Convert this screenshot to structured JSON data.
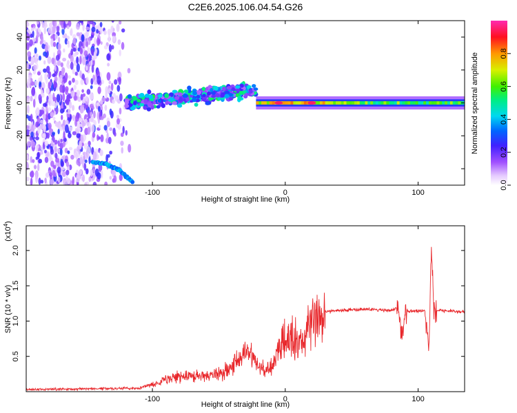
{
  "title": "C2E6.2025.106.04.54.G26",
  "chart_data": [
    {
      "type": "heatmap",
      "title": "C2E6.2025.106.04.54.G26",
      "xlabel": "Height of straight line (km)",
      "ylabel": "Frequency (Hz)",
      "xlim": [
        -195,
        135
      ],
      "ylim": [
        -50,
        50
      ],
      "xticks": [
        -100,
        0,
        100
      ],
      "xtick_labels": [
        "-100",
        "0",
        "100"
      ],
      "yticks": [
        -40,
        -20,
        0,
        20,
        40
      ],
      "ytick_labels": [
        "-40",
        "-20",
        "0",
        "20",
        "40"
      ],
      "grid": false,
      "colorbar": {
        "label": "Normalized spectral amplitude",
        "range": [
          0.0,
          1.0
        ],
        "ticks": [
          0.0,
          0.2,
          0.4,
          0.6,
          0.8
        ],
        "tick_labels": [
          "0.0",
          "0.2",
          "0.4",
          "0.6",
          "0.8"
        ],
        "colormap": "rainbow (white-violet-blue-cyan-green-yellow-red-magenta)"
      },
      "features": [
        {
          "name": "scattered noise",
          "x_range": [
            -195,
            -115
          ],
          "y_range": [
            -50,
            50
          ],
          "amplitude": 0.1
        },
        {
          "name": "low curved trace",
          "x": [
            -145,
            -135,
            -125,
            -115
          ],
          "y": [
            -36,
            -37,
            -41,
            -48
          ],
          "amplitude": 0.3
        },
        {
          "name": "wide band",
          "x_range": [
            -120,
            -22
          ],
          "y_center": [
            0,
            8
          ],
          "amplitude": 0.35
        },
        {
          "name": "main tone",
          "x_range": [
            -22,
            135
          ],
          "y_center": 0,
          "amplitude": 0.6
        },
        {
          "name": "peak",
          "x": [
            -5,
            20
          ],
          "y": [
            0,
            0
          ],
          "amplitude": 0.95
        }
      ]
    },
    {
      "type": "line",
      "xlabel": "Height of straight line (km)",
      "ylabel": "SNR (10 * v/v)",
      "y_multiplier": "(x10^4)",
      "y_multiplier_base": "(x10",
      "y_multiplier_exp": "4",
      "y_multiplier_close": ")",
      "xlim": [
        -195,
        135
      ],
      "ylim": [
        0,
        23500
      ],
      "xticks": [
        -100,
        0,
        100
      ],
      "xtick_labels": [
        "-100",
        "0",
        "100"
      ],
      "yticks": [
        5000,
        10000,
        15000,
        20000
      ],
      "ytick_labels": [
        "0.5",
        "1.0",
        "1.5",
        "2.0"
      ],
      "color": "#e8262a",
      "grid": false,
      "series": [
        {
          "x": [
            -195,
            -150,
            -110,
            -100,
            -90,
            -80,
            -70,
            -60,
            -50,
            -40,
            -35,
            -30,
            -25,
            -20,
            -15,
            -10,
            -5,
            0,
            5,
            8,
            10,
            15,
            20,
            25,
            30,
            40,
            50,
            60,
            70,
            80,
            85,
            88,
            90,
            95,
            100,
            105,
            108,
            110,
            112,
            115,
            125,
            135
          ],
          "y": [
            300,
            400,
            500,
            1000,
            1800,
            2100,
            2200,
            2300,
            2600,
            3500,
            4500,
            5500,
            4800,
            3500,
            3000,
            3500,
            6000,
            7500,
            7200,
            7800,
            7000,
            8000,
            9500,
            10500,
            11300,
            11500,
            11600,
            11700,
            11600,
            11500,
            12000,
            7500,
            11200,
            11500,
            11400,
            11500,
            6000,
            20000,
            11500,
            11500,
            11400,
            11300
          ]
        }
      ]
    }
  ]
}
